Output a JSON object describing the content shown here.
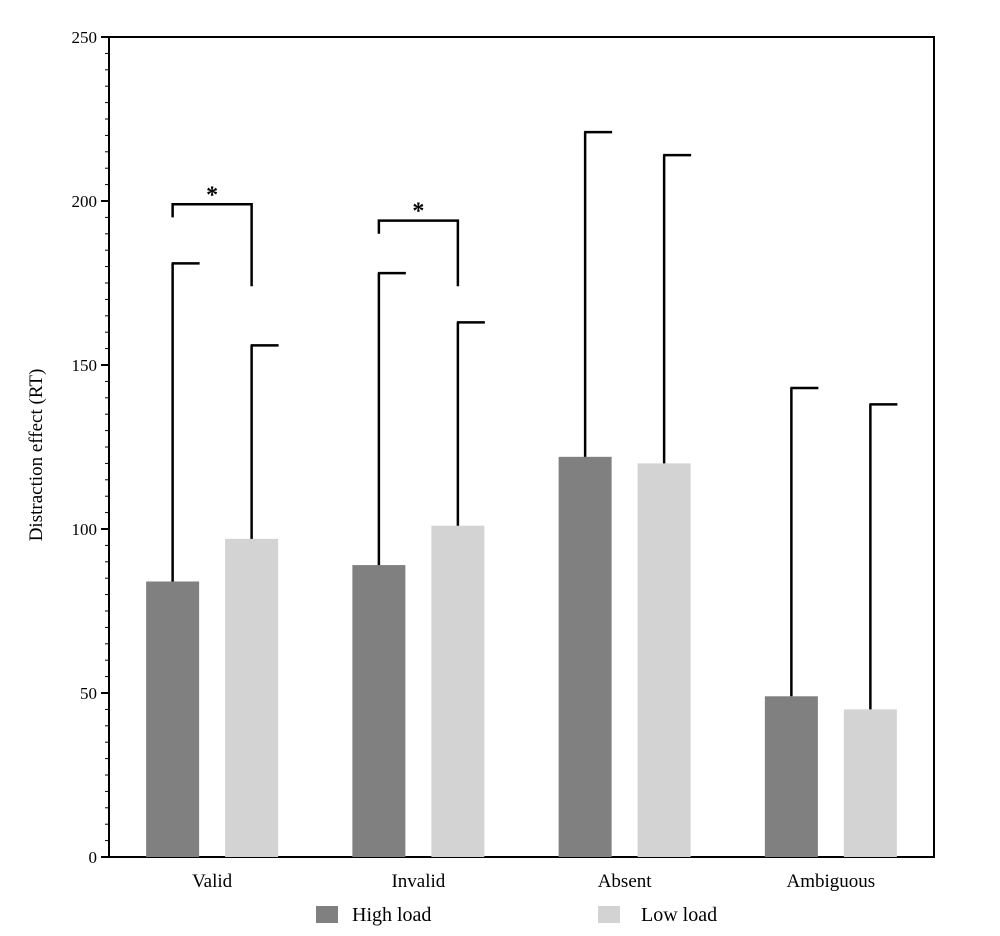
{
  "chart_data": {
    "type": "bar",
    "ylabel": "Distraction effect (RT)",
    "xlabel": "",
    "ylim": [
      0,
      250
    ],
    "yticks": [
      0,
      50,
      100,
      150,
      200,
      250
    ],
    "minor_ticks_per_interval": 10,
    "grid": false,
    "legend_position": "bottom",
    "categories": [
      "Valid",
      "Invalid",
      "Absent",
      "Ambiguous"
    ],
    "series": [
      {
        "name": "High load",
        "color": "#808080",
        "values": [
          84,
          89,
          122,
          49
        ],
        "error_upper": [
          181,
          178,
          221,
          143
        ]
      },
      {
        "name": "Low load",
        "color": "#d3d3d3",
        "values": [
          97,
          101,
          120,
          45
        ],
        "error_upper": [
          156,
          163,
          214,
          138
        ]
      }
    ],
    "significance": [
      {
        "category": "Valid",
        "label": "*",
        "bracket_y": 199,
        "left_end": 195,
        "right_end": 174
      },
      {
        "category": "Invalid",
        "label": "*",
        "bracket_y": 194,
        "left_end": 190,
        "right_end": 174
      }
    ]
  }
}
